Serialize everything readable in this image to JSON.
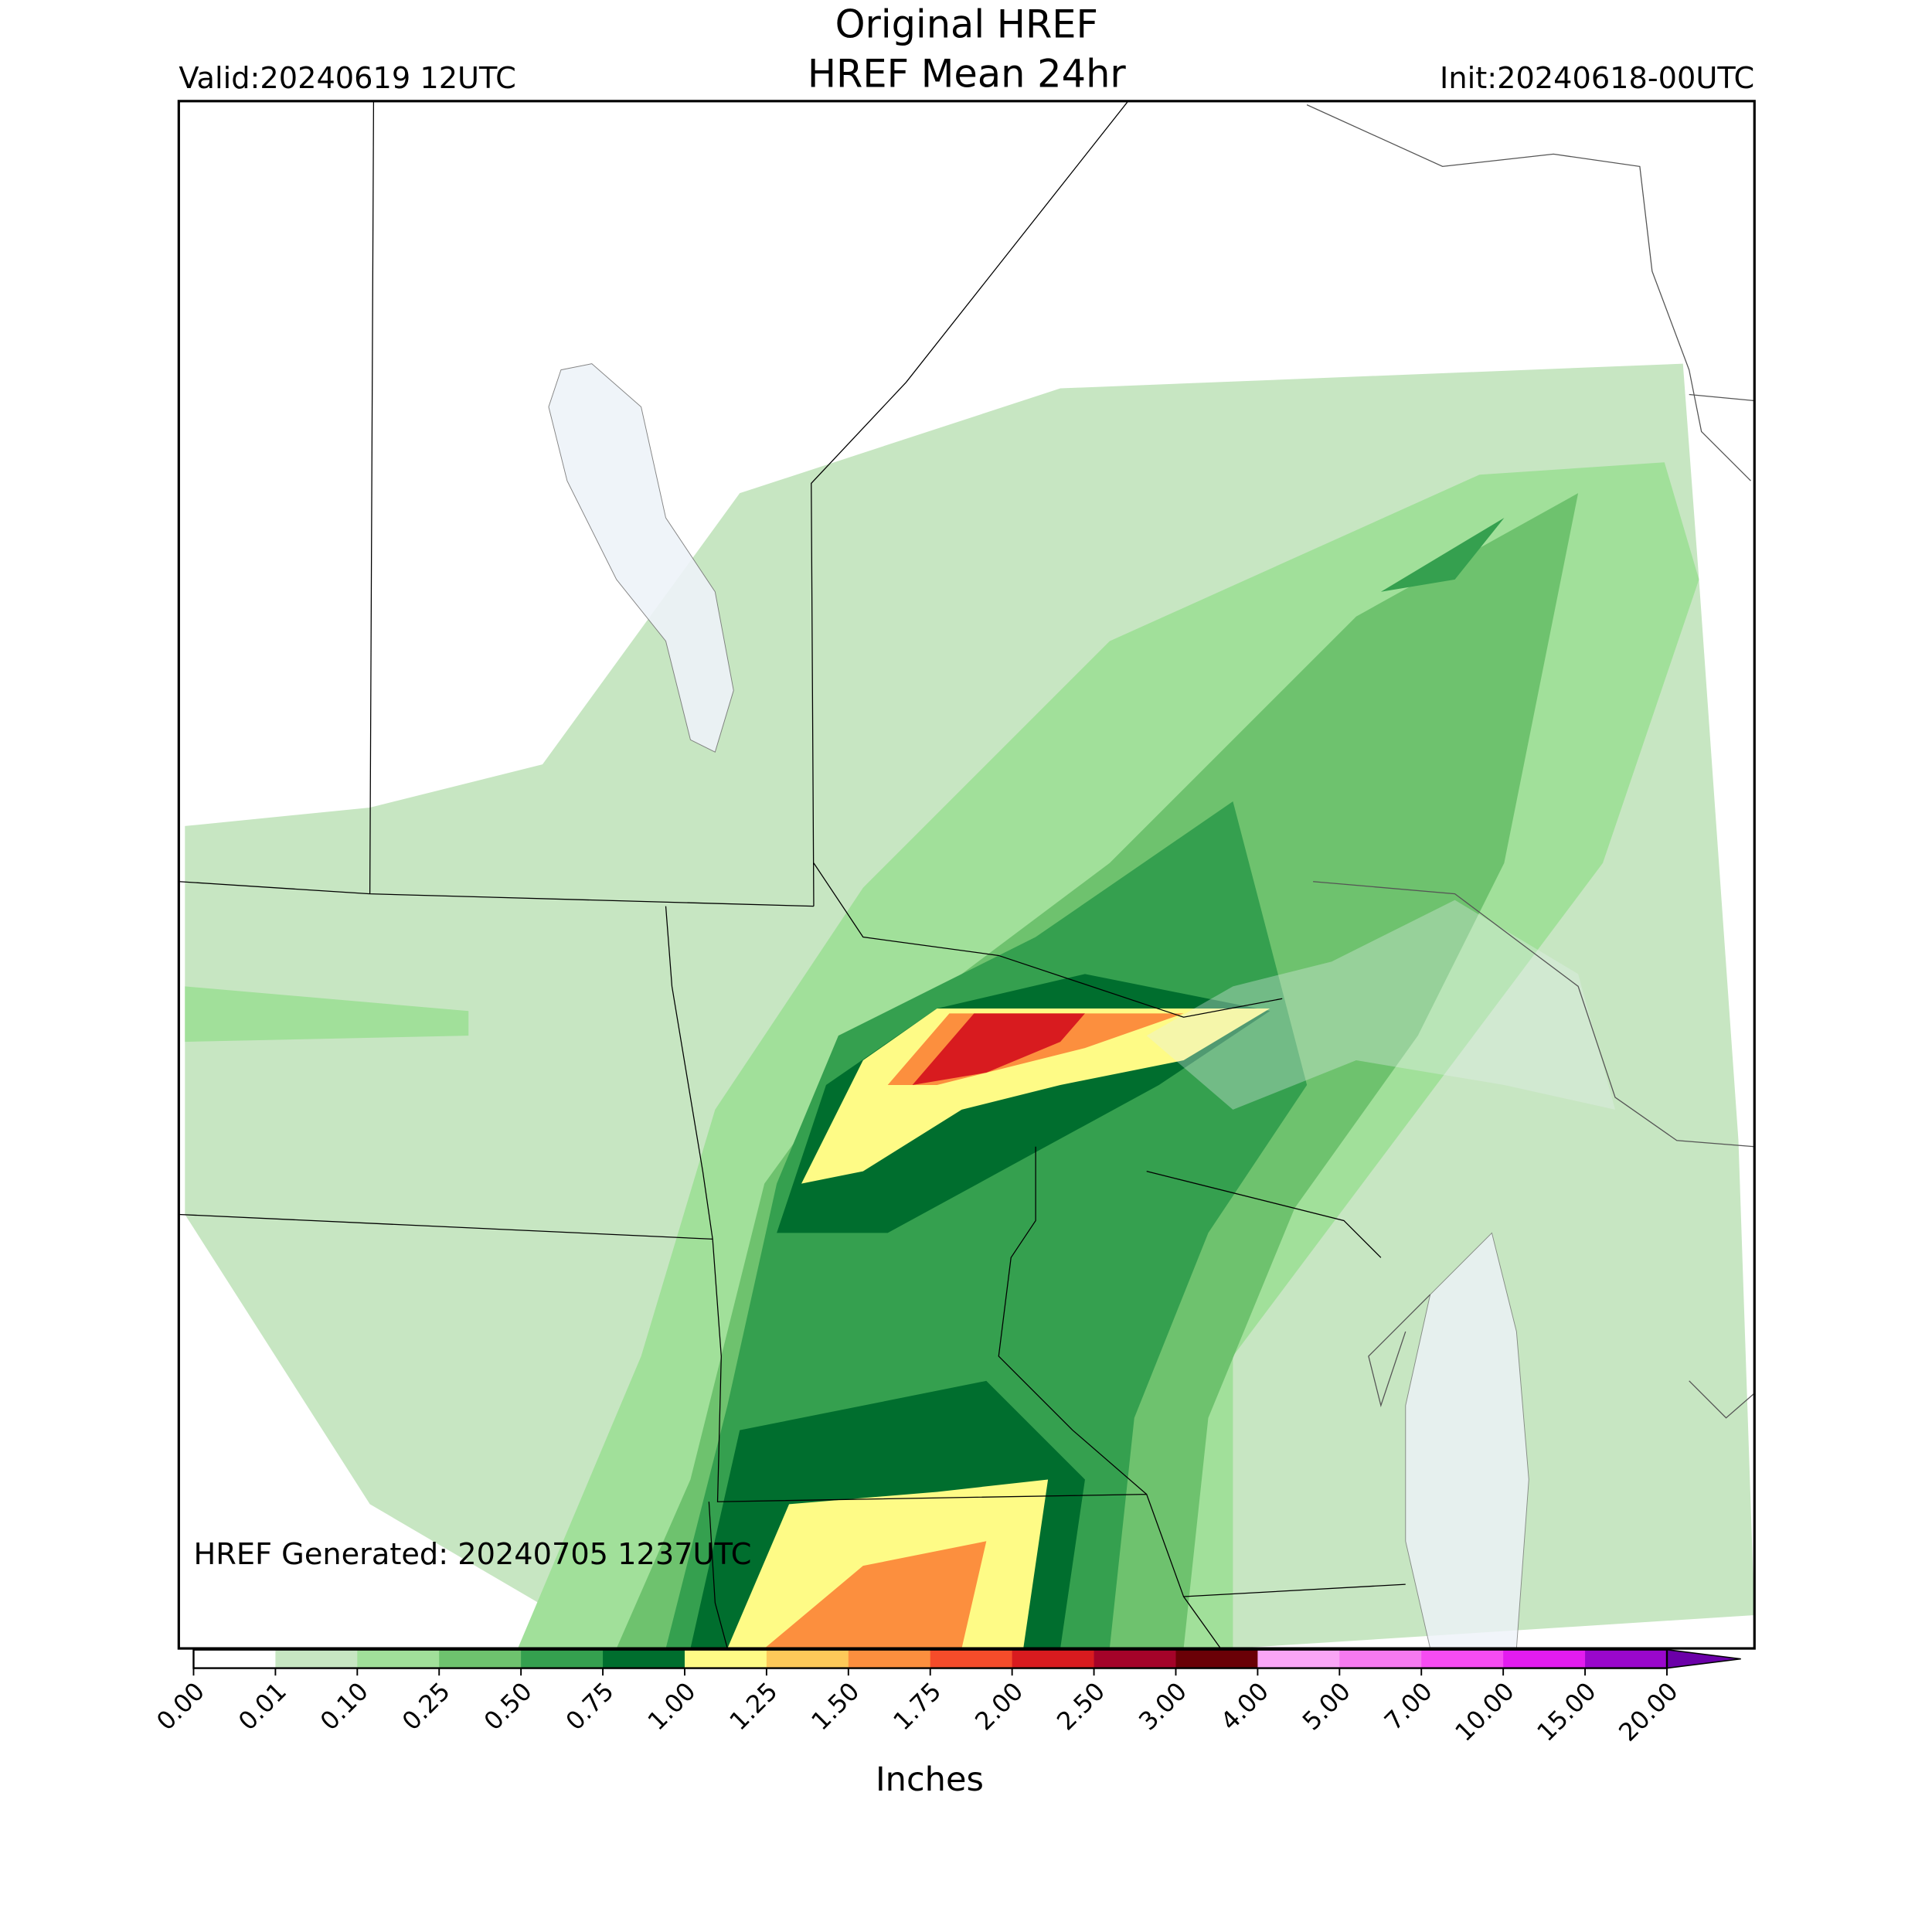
{
  "header": {
    "title": "Original HREF",
    "subtitle": "HREF Mean 24hr",
    "valid": "Valid:20240619 12UTC",
    "init": "Init:20240618-00UTC"
  },
  "map": {
    "footnote": "HREF Generated: 20240705 1237UTC"
  },
  "colorbar": {
    "label": "Inches",
    "ticks": [
      {
        "value": 0,
        "label": "0.00"
      },
      {
        "value": 0.01,
        "label": "0.01"
      },
      {
        "value": 0.1,
        "label": "0.10"
      },
      {
        "value": 0.25,
        "label": "0.25"
      },
      {
        "value": 0.5,
        "label": "0.50"
      },
      {
        "value": 0.75,
        "label": "0.75"
      },
      {
        "value": 1,
        "label": "1.00"
      },
      {
        "value": 1.25,
        "label": "1.25"
      },
      {
        "value": 1.5,
        "label": "1.50"
      },
      {
        "value": 1.75,
        "label": "1.75"
      },
      {
        "value": 2,
        "label": "2.00"
      },
      {
        "value": 2.5,
        "label": "2.50"
      },
      {
        "value": 3,
        "label": "3.00"
      },
      {
        "value": 4,
        "label": "4.00"
      },
      {
        "value": 5,
        "label": "5.00"
      },
      {
        "value": 7,
        "label": "7.00"
      },
      {
        "value": 10,
        "label": "10.00"
      },
      {
        "value": 15,
        "label": "15.00"
      },
      {
        "value": 20,
        "label": "20.00"
      }
    ],
    "colors": [
      "#ffffff",
      "#c7e6c2",
      "#a1e09a",
      "#6ec26e",
      "#35a04f",
      "#006e2e",
      "#fefb86",
      "#fdc959",
      "#fc8f3e",
      "#f54c2a",
      "#d81b1f",
      "#a40329",
      "#6a0006",
      "#f9a6f6",
      "#f67af0",
      "#f64cf2",
      "#e31cef",
      "#9a07cc"
    ],
    "extend_color": "#6b00a8"
  }
}
